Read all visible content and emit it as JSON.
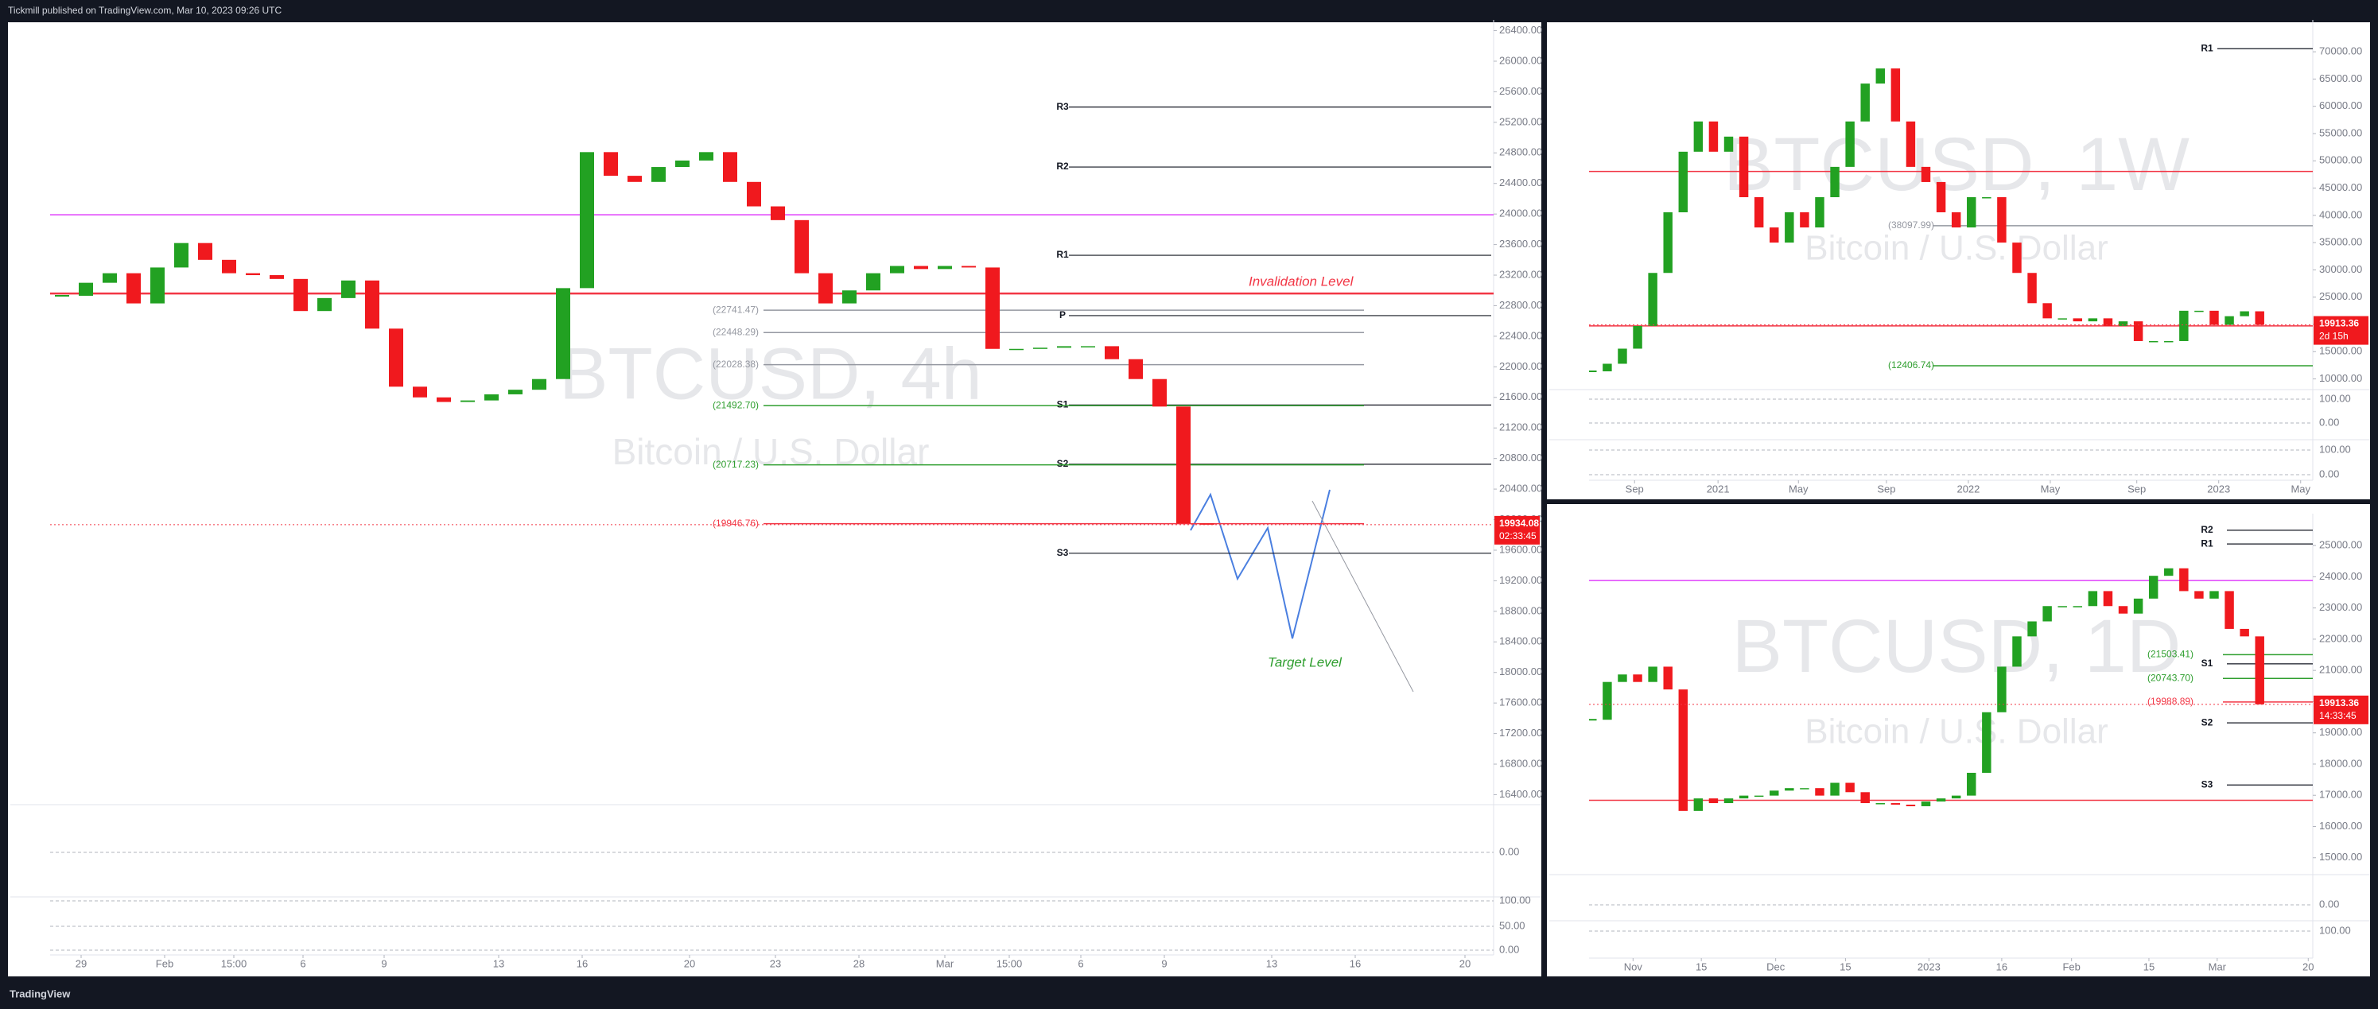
{
  "header": {
    "publisher": "Tickmill published on TradingView.com, Mar 10, 2023 09:26 UTC"
  },
  "footer": {
    "brand": "TradingView"
  },
  "chart_data": [
    {
      "type": "candlestick",
      "title": "BTCUSD, 4h",
      "subtitle": "Bitcoin / U.S. Dollar",
      "values": [
        22930,
        23100,
        23225,
        22830,
        23300,
        23620,
        23400,
        23225,
        23200,
        23150,
        22730,
        22900,
        23130,
        22500,
        21740,
        21600,
        21540,
        21560,
        21640,
        21700,
        21840,
        23030,
        24810,
        24500,
        24420,
        24615,
        24700,
        24810,
        24420,
        24100,
        23920,
        23225,
        22830,
        23000,
        23225,
        23320,
        23280,
        23320,
        23300,
        22235,
        22235,
        22250,
        22270,
        22270,
        22100,
        21840,
        21480,
        19950,
        19934
      ],
      "up_color": "#22a122",
      "down_color": "#f0191e",
      "xlim": [
        -0.5,
        60
      ],
      "xticks": [
        {
          "value": 0.8,
          "label": "29"
        },
        {
          "value": 4.3,
          "label": "Feb"
        },
        {
          "value": 7.2,
          "label": "15:00"
        },
        {
          "value": 10.1,
          "label": "6"
        },
        {
          "value": 13.5,
          "label": "9"
        },
        {
          "value": 18.3,
          "label": "13"
        },
        {
          "value": 21.8,
          "label": "16"
        },
        {
          "value": 26.3,
          "label": "20"
        },
        {
          "value": 29.9,
          "label": "23"
        },
        {
          "value": 33.4,
          "label": "28"
        },
        {
          "value": 37,
          "label": "Mar"
        },
        {
          "value": 39.7,
          "label": "15:00"
        },
        {
          "value": 42.7,
          "label": "6"
        },
        {
          "value": 46.2,
          "label": "9"
        },
        {
          "value": 50.7,
          "label": "13"
        },
        {
          "value": 54.2,
          "label": "16"
        },
        {
          "value": 58.8,
          "label": "20"
        }
      ],
      "ylim": [
        16280,
        26520
      ],
      "yticks": [
        {
          "value": 16400,
          "label": "16400.00"
        },
        {
          "value": 16800,
          "label": "16800.00"
        },
        {
          "value": 17200,
          "label": "17200.00"
        },
        {
          "value": 17600,
          "label": "17600.00"
        },
        {
          "value": 18000,
          "label": "18000.00"
        },
        {
          "value": 18400,
          "label": "18400.00"
        },
        {
          "value": 18800,
          "label": "18800.00"
        },
        {
          "value": 19200,
          "label": "19200.00"
        },
        {
          "value": 19600,
          "label": "19600.00"
        },
        {
          "value": 20000,
          "label": "20000.00"
        },
        {
          "value": 20400,
          "label": "20400.00"
        },
        {
          "value": 20800,
          "label": "20800.00"
        },
        {
          "value": 21200,
          "label": "21200.00"
        },
        {
          "value": 21600,
          "label": "21600.00"
        },
        {
          "value": 22000,
          "label": "22000.00"
        },
        {
          "value": 22400,
          "label": "22400.00"
        },
        {
          "value": 22800,
          "label": "22800.00"
        },
        {
          "value": 23200,
          "label": "23200.00"
        },
        {
          "value": 23600,
          "label": "23600.00"
        },
        {
          "value": 24000,
          "label": "24000.00"
        },
        {
          "value": 24400,
          "label": "24400.00"
        },
        {
          "value": 24800,
          "label": "24800.00"
        },
        {
          "value": 25200,
          "label": "25200.00"
        },
        {
          "value": 25600,
          "label": "25600.00"
        },
        {
          "value": 26000,
          "label": "26000.00"
        },
        {
          "value": 26400,
          "label": "26400.00"
        }
      ],
      "levels": [
        {
          "name": "R3",
          "value": 25400
        },
        {
          "name": "R2",
          "value": 24615
        },
        {
          "name": "R1",
          "value": 23460
        },
        {
          "name": "P",
          "value": 22670
        },
        {
          "name": "S1",
          "value": 21500
        },
        {
          "name": "S2",
          "value": 20725
        },
        {
          "name": "S3",
          "value": 19560
        }
      ],
      "level_labels": [
        {
          "value": 22741.47,
          "label": "(22741.47)",
          "color": "#9598a1"
        },
        {
          "value": 22448.29,
          "label": "(22448.29)",
          "color": "#9598a1"
        },
        {
          "value": 22028.38,
          "label": "(22028.38)",
          "color": "#9598a1"
        },
        {
          "value": 21492.7,
          "label": "(21492.70)",
          "color": "#2e9e2e"
        },
        {
          "value": 20717.23,
          "label": "(20717.23)",
          "color": "#2e9e2e"
        },
        {
          "value": 19946.76,
          "label": "(19946.76)",
          "color": "#f23645"
        }
      ],
      "lines": [
        {
          "value": 23990,
          "color": "#e040fb"
        }
      ],
      "key_level": {
        "name": "Invalidation Level",
        "value": 22960,
        "color": "#f23645"
      },
      "target_label": "Target Level",
      "last_price": 19934.08,
      "countdown": "02:33:45",
      "indicator_ticks": [
        "0.00",
        "100.00",
        "50.00",
        "0.00"
      ]
    },
    {
      "type": "candlestick",
      "title": "BTCUSD, 1W",
      "subtitle": "Bitcoin / U.S. Dollar",
      "values": [
        11390,
        12780,
        15550,
        19720,
        29440,
        40560,
        51670,
        57220,
        51670,
        54440,
        43330,
        37780,
        35000,
        40560,
        37780,
        43330,
        48890,
        57220,
        64170,
        66940,
        57220,
        48890,
        46110,
        40560,
        37780,
        43330,
        43330,
        35000,
        29440,
        23890,
        21110,
        21110,
        20560,
        21110,
        19720,
        20560,
        16940,
        16940,
        16940,
        22500,
        22500,
        19913,
        21500,
        22400,
        19913
      ],
      "up_color": "#22a122",
      "down_color": "#f0191e",
      "xlim": [
        -0.2,
        47.5
      ],
      "xticks": [
        {
          "value": 2.8,
          "label": "Sep"
        },
        {
          "value": 8.3,
          "label": "2021"
        },
        {
          "value": 13.6,
          "label": "May"
        },
        {
          "value": 19.4,
          "label": "Sep"
        },
        {
          "value": 24.8,
          "label": "2022"
        },
        {
          "value": 30.2,
          "label": "May"
        },
        {
          "value": 35.9,
          "label": "Sep"
        },
        {
          "value": 41.3,
          "label": "2023"
        },
        {
          "value": 46.7,
          "label": "May"
        }
      ],
      "ylim": [
        8330,
        75560
      ],
      "yticks": [
        {
          "value": 10000,
          "label": "10000.00"
        },
        {
          "value": 15000,
          "label": "15000.00"
        },
        {
          "value": 20000,
          "label": "20000.00"
        },
        {
          "value": 25000,
          "label": "25000.00"
        },
        {
          "value": 30000,
          "label": "30000.00"
        },
        {
          "value": 35000,
          "label": "35000.00"
        },
        {
          "value": 40000,
          "label": "40000.00"
        },
        {
          "value": 45000,
          "label": "45000.00"
        },
        {
          "value": 50000,
          "label": "50000.00"
        },
        {
          "value": 55000,
          "label": "55000.00"
        },
        {
          "value": 60000,
          "label": "60000.00"
        },
        {
          "value": 65000,
          "label": "65000.00"
        },
        {
          "value": 70000,
          "label": "70000.00"
        }
      ],
      "levels": [
        {
          "name": "R1",
          "value": 70560
        }
      ],
      "level_labels": [
        {
          "value": 38097.99,
          "label": "(38097.99)",
          "color": "#9598a1"
        },
        {
          "value": 12406.74,
          "label": "(12406.74)",
          "color": "#2e9e2e"
        }
      ],
      "lines": [
        {
          "value": 48050,
          "color": "#f23645"
        },
        {
          "value": 19720,
          "color": "#f23645"
        }
      ],
      "last_price": 19913.36,
      "countdown": "2d 15h",
      "indicator_ticks": [
        "100.00",
        "0.00",
        "100.00",
        "0.00"
      ]
    },
    {
      "type": "candlestick",
      "title": "BTCUSD, 1D",
      "subtitle": "Bitcoin / U.S. Dollar",
      "values": [
        19420,
        20630,
        20870,
        20630,
        21120,
        20390,
        16500,
        16900,
        16750,
        16900,
        16990,
        16990,
        17150,
        17230,
        17230,
        16990,
        17400,
        17100,
        16750,
        16750,
        16700,
        16650,
        16800,
        16900,
        16990,
        17720,
        19660,
        21120,
        22090,
        22570,
        23060,
        23060,
        23060,
        23540,
        23060,
        22820,
        23300,
        24030,
        24270,
        23540,
        23300,
        23540,
        22330,
        22090,
        19913
      ],
      "up_color": "#22a122",
      "down_color": "#f0191e",
      "xlim": [
        -0.2,
        47.5
      ],
      "xticks": [
        {
          "value": 2.7,
          "label": "Nov"
        },
        {
          "value": 7.2,
          "label": "15"
        },
        {
          "value": 12.1,
          "label": "Dec"
        },
        {
          "value": 16.7,
          "label": "15"
        },
        {
          "value": 22.2,
          "label": "2023"
        },
        {
          "value": 27,
          "label": "16"
        },
        {
          "value": 31.6,
          "label": "Feb"
        },
        {
          "value": 36.7,
          "label": "15"
        },
        {
          "value": 41.2,
          "label": "Mar"
        },
        {
          "value": 47.2,
          "label": "20"
        }
      ],
      "ylim": [
        14510,
        25970
      ],
      "yticks": [
        {
          "value": 15000,
          "label": "15000.00"
        },
        {
          "value": 16000,
          "label": "16000.00"
        },
        {
          "value": 17000,
          "label": "17000.00"
        },
        {
          "value": 18000,
          "label": "18000.00"
        },
        {
          "value": 19000,
          "label": "19000.00"
        },
        {
          "value": 20000,
          "label": "20000.00"
        },
        {
          "value": 21000,
          "label": "21000.00"
        },
        {
          "value": 22000,
          "label": "22000.00"
        },
        {
          "value": 23000,
          "label": "23000.00"
        },
        {
          "value": 24000,
          "label": "24000.00"
        },
        {
          "value": 25000,
          "label": "25000.00"
        }
      ],
      "levels": [
        {
          "name": "R2",
          "value": 25490
        },
        {
          "name": "R1",
          "value": 25050
        },
        {
          "name": "S1",
          "value": 21210
        },
        {
          "name": "S2",
          "value": 19320
        },
        {
          "name": "S3",
          "value": 17330
        }
      ],
      "level_labels": [
        {
          "value": 21503.41,
          "label": "(21503.41)",
          "color": "#2e9e2e"
        },
        {
          "value": 20743.7,
          "label": "(20743.70)",
          "color": "#2e9e2e"
        },
        {
          "value": 19988.89,
          "label": "(19988.89)",
          "color": "#f23645"
        }
      ],
      "lines": [
        {
          "value": 16840,
          "color": "#f23645"
        },
        {
          "value": 23880,
          "color": "#e040fb"
        }
      ],
      "last_price": 19913.36,
      "countdown": "14:33:45",
      "indicator_ticks": [
        "0.00",
        "100.00"
      ]
    }
  ]
}
